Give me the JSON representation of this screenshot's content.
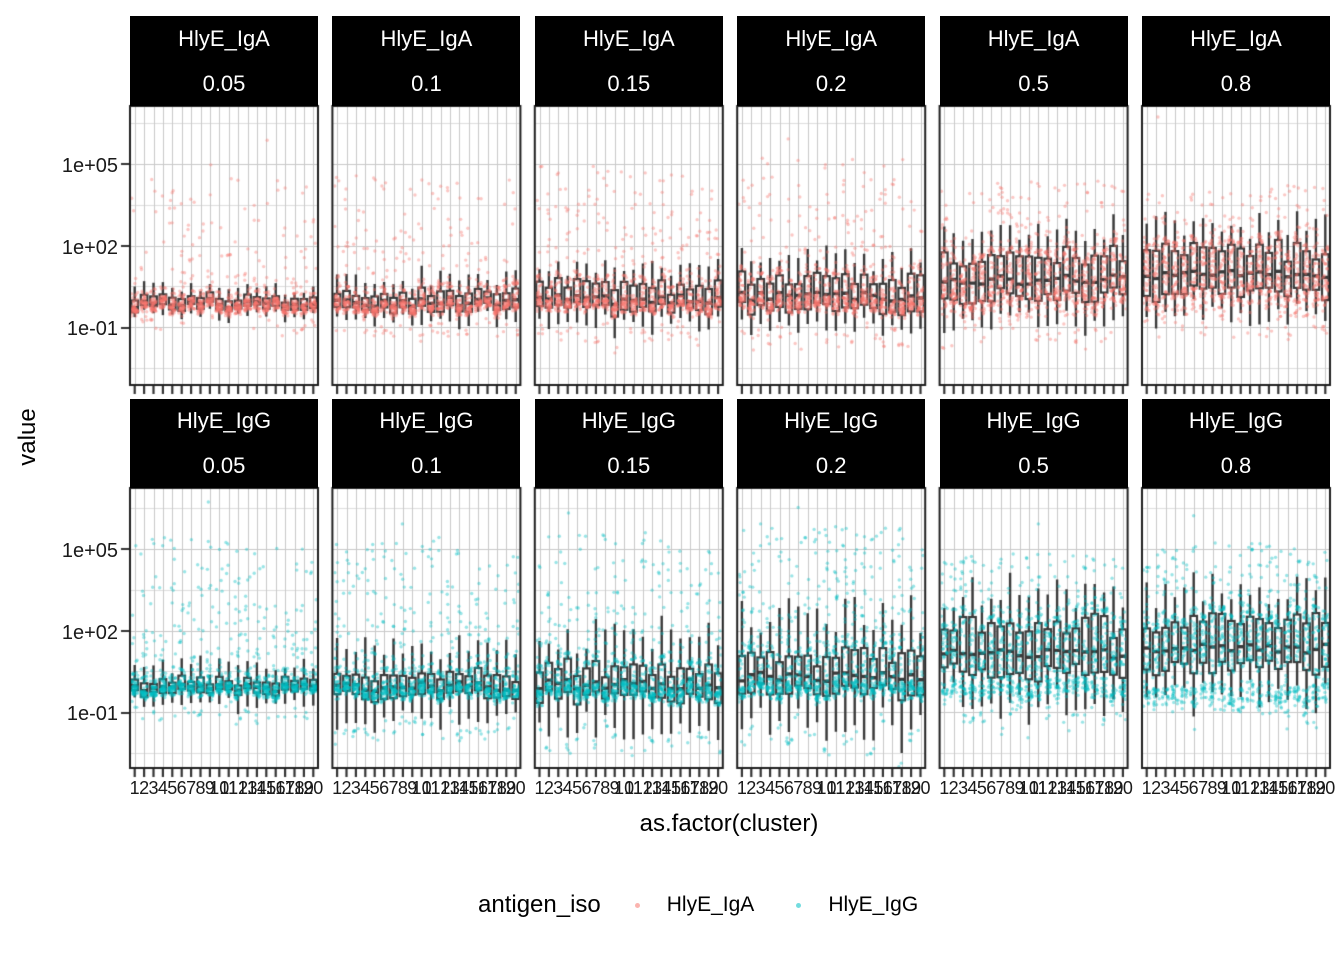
{
  "chart_data": {
    "type": "boxplot",
    "description": "Faceted boxplots with jittered points on a log10 y-scale; facet rows = antigen_iso, facet columns = threshold value",
    "x_label": "as.factor(cluster)",
    "y_label": "value",
    "clusters": [
      "1",
      "2",
      "3",
      "4",
      "5",
      "6",
      "7",
      "8",
      "9",
      "10",
      "11",
      "12",
      "13",
      "14",
      "15",
      "16",
      "17",
      "18",
      "19",
      "20"
    ],
    "y_axis": {
      "scale": "log10",
      "breaks": [
        {
          "label": "1e+05",
          "exp": 5
        },
        {
          "label": "1e+02",
          "exp": 2
        },
        {
          "label": "1e-01",
          "exp": -1
        }
      ],
      "minor_exps": [
        6.5,
        3.5,
        0.5,
        -2.5
      ]
    },
    "facet_rows": [
      {
        "antigen_iso": "HlyE_IgA",
        "color": "#F8766D",
        "n_per_cluster": 55,
        "facets": [
          {
            "value": "0.05",
            "med": -0.12,
            "iqr": 0.3,
            "wh": 0.55,
            "band_frac": 0.62,
            "band_off": -0.1,
            "band_sd": 0.13,
            "mid_frac": 0.26,
            "tail_max": 4.6,
            "extras": [
              [
                9,
                4.95
              ],
              [
                15,
                5.85
              ]
            ]
          },
          {
            "value": "0.1",
            "med": -0.05,
            "iqr": 0.5,
            "wh": 0.85,
            "band_frac": 0.56,
            "band_off": -0.15,
            "band_sd": 0.14,
            "mid_frac": 0.3,
            "tail_max": 4.7,
            "extras": [
              [
                5,
                4.4
              ]
            ]
          },
          {
            "value": "0.15",
            "med": 0.02,
            "iqr": 0.7,
            "wh": 1.05,
            "band_frac": 0.5,
            "band_off": -0.22,
            "band_sd": 0.15,
            "mid_frac": 0.34,
            "tail_max": 4.9,
            "extras": [
              [
                3,
                4.6
              ]
            ]
          },
          {
            "value": "0.2",
            "med": 0.12,
            "iqr": 0.95,
            "wh": 1.2,
            "band_frac": 0.45,
            "band_off": -0.3,
            "band_sd": 0.17,
            "mid_frac": 0.38,
            "tail_max": 5.2,
            "extras": [
              [
                6,
                5.9
              ]
            ]
          },
          {
            "value": "0.5",
            "med": 0.75,
            "iqr": 1.25,
            "wh": 1.5,
            "band_frac": 0.32,
            "band_off": -0.75,
            "band_sd": 0.28,
            "mid_frac": 0.52,
            "tail_max": 4.4,
            "extras": [
              [
                14,
                4.2
              ]
            ]
          },
          {
            "value": "0.8",
            "med": 0.95,
            "iqr": 1.3,
            "wh": 1.6,
            "band_frac": 0.28,
            "band_off": -0.85,
            "band_sd": 0.28,
            "mid_frac": 0.58,
            "tail_max": 4.2,
            "extras": [
              [
                2,
                6.7
              ]
            ]
          }
        ]
      },
      {
        "antigen_iso": "HlyE_IgG",
        "color": "#00BFC4",
        "n_per_cluster": 62,
        "facets": [
          {
            "value": "0.05",
            "med": -0.15,
            "iqr": 0.35,
            "wh": 0.85,
            "band_frac": 0.58,
            "band_off": -0.08,
            "band_sd": 0.14,
            "mid_frac": 0.2,
            "tail_max": 5.4,
            "extras": [
              [
                9,
                6.7
              ],
              [
                4,
                5.1
              ],
              [
                16,
                5.0
              ]
            ]
          },
          {
            "value": "0.1",
            "med": -0.05,
            "iqr": 0.65,
            "wh": 1.6,
            "band_frac": 0.54,
            "band_off": -0.15,
            "band_sd": 0.15,
            "mid_frac": 0.22,
            "tail_max": 5.3,
            "extras": [
              [
                8,
                5.9
              ],
              [
                12,
                5.4
              ]
            ]
          },
          {
            "value": "0.15",
            "med": 0.05,
            "iqr": 0.9,
            "wh": 2.0,
            "band_frac": 0.5,
            "band_off": -0.25,
            "band_sd": 0.16,
            "mid_frac": 0.26,
            "tail_max": 5.6,
            "extras": [
              [
                4,
                6.3
              ]
            ]
          },
          {
            "value": "0.2",
            "med": 0.3,
            "iqr": 1.15,
            "wh": 2.3,
            "band_frac": 0.46,
            "band_off": -0.45,
            "band_sd": 0.18,
            "mid_frac": 0.3,
            "tail_max": 5.8,
            "extras": [
              [
                7,
                6.5
              ],
              [
                3,
                5.9
              ]
            ]
          },
          {
            "value": "0.5",
            "med": 1.15,
            "iqr": 1.5,
            "wh": 2.0,
            "band_frac": 0.34,
            "band_off": -1.3,
            "band_sd": 0.22,
            "mid_frac": 0.46,
            "tail_max": 4.8,
            "extras": [
              [
                11,
                5.9
              ],
              [
                19,
                4.6
              ]
            ]
          },
          {
            "value": "0.8",
            "med": 1.35,
            "iqr": 1.5,
            "wh": 1.9,
            "band_frac": 0.3,
            "band_off": -1.7,
            "band_sd": 0.25,
            "mid_frac": 0.5,
            "tail_max": 5.2,
            "extras": [
              [
                6,
                6.2
              ],
              [
                16,
                -1.6
              ]
            ]
          }
        ]
      }
    ],
    "legend": {
      "title": "antigen_iso",
      "entries": [
        {
          "label": "HlyE_IgA",
          "color": "#F8766D"
        },
        {
          "label": "HlyE_IgG",
          "color": "#00BFC4"
        }
      ]
    }
  },
  "style": {
    "point_iga": "#F8766D",
    "point_igg": "#00BFC4",
    "box_stroke": "#3a3a3a",
    "box_fill": "#ffffff",
    "grid_major": "#c9c9c9",
    "grid_minor": "#dedede",
    "panel_border": "#1f1f1f",
    "strip_bg": "#000000",
    "strip_text": "#ffffff",
    "axis_text": "#1a1a1a",
    "tick_mark": "#333333"
  }
}
